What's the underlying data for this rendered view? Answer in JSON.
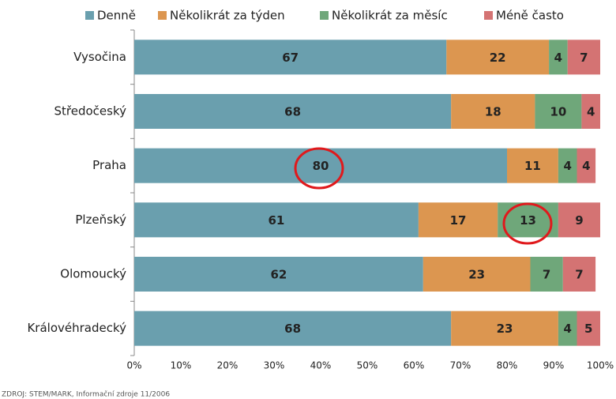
{
  "chart_data": {
    "type": "stacked-barh",
    "categories": [
      "Vysočina",
      "Středočeský",
      "Praha",
      "Plzeňský",
      "Olomoucký",
      "Královéhradecký"
    ],
    "series": [
      {
        "name": "Denně",
        "color": "#6a9fae",
        "values": [
          67,
          68,
          80,
          61,
          62,
          68
        ]
      },
      {
        "name": "Několikrát za týden",
        "color": "#dc9650",
        "values": [
          22,
          18,
          11,
          17,
          23,
          23
        ]
      },
      {
        "name": "Několikrát za měsíc",
        "color": "#6fa77a",
        "values": [
          4,
          10,
          4,
          13,
          7,
          4
        ]
      },
      {
        "name": "Méně často",
        "color": "#d47373",
        "values": [
          7,
          4,
          4,
          9,
          7,
          5
        ]
      }
    ],
    "xlim": [
      0,
      100
    ],
    "xticks": [
      {
        "value": 0,
        "label": "0%"
      },
      {
        "value": 10,
        "label": "10%"
      },
      {
        "value": 20,
        "label": "20%"
      },
      {
        "value": 30,
        "label": "30%"
      },
      {
        "value": 40,
        "label": "40%"
      },
      {
        "value": 50,
        "label": "50%"
      },
      {
        "value": 60,
        "label": "60%"
      },
      {
        "value": 70,
        "label": "70%"
      },
      {
        "value": 80,
        "label": "80%"
      },
      {
        "value": 90,
        "label": "90%"
      },
      {
        "value": 100,
        "label": "100%"
      }
    ],
    "legend": "top",
    "source": "ZDROJ: STEM/MARK, Informační zdroje 11/2006"
  }
}
